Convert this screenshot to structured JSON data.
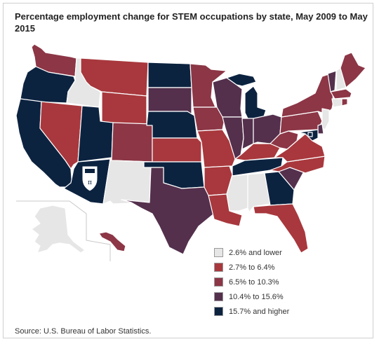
{
  "title": "Percentage employment change for STEM occupations by state, May 2009 to May 2015",
  "source": "Source: U.S. Bureau of Labor Statistics.",
  "colors": {
    "c1": "#e6e6e6",
    "c2": "#a8383d",
    "c3": "#8c3646",
    "c4": "#54304d",
    "c5": "#0c2340"
  },
  "legend": [
    {
      "label": "2.6% and lower",
      "class": "c1"
    },
    {
      "label": "2.7% to 6.4%",
      "class": "c2"
    },
    {
      "label": "6.5% to 10.3%",
      "class": "c3"
    },
    {
      "label": "10.4% to 15.6%",
      "class": "c4"
    },
    {
      "label": "15.7% and higher",
      "class": "c5"
    }
  ],
  "states": {
    "WA": "c3",
    "OR": "c5",
    "CA": "c5",
    "ID": "c1",
    "NV": "c2",
    "MT": "c2",
    "WY": "c2",
    "UT": "c5",
    "AZ": "c5",
    "CO": "c3",
    "NM": "c1",
    "ND": "c5",
    "SD": "c4",
    "NE": "c5",
    "KS": "c2",
    "OK": "c5",
    "TX": "c4",
    "MN": "c3",
    "IA": "c3",
    "MO": "c2",
    "AR": "c2",
    "LA": "c2",
    "WI": "c4",
    "IL": "c4",
    "MI": "c5",
    "IN": "c4",
    "OH": "c4",
    "KY": "c2",
    "TN": "c5",
    "MS": "c1",
    "AL": "c1",
    "GA": "c5",
    "FL": "c2",
    "SC": "c4",
    "NC": "c2",
    "VA": "c2",
    "WV": "c3",
    "PA": "c3",
    "NY": "c3",
    "VT": "c4",
    "NH": "c1",
    "ME": "c3",
    "MA": "c3",
    "CT": "c1",
    "RI": "c3",
    "NJ": "c1",
    "DE": "c4",
    "MD": "c5",
    "DC": "c5",
    "AK": "c1",
    "HI": "c3"
  }
}
